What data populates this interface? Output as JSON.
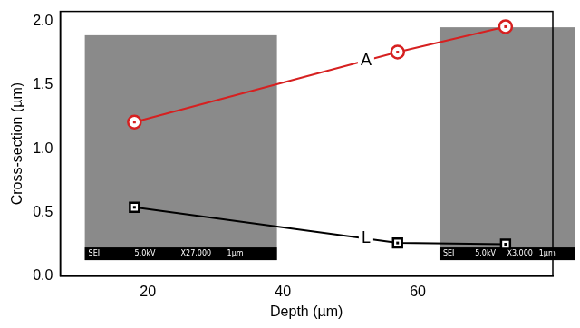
{
  "chart_data": {
    "type": "line",
    "x_label": "Depth (µm)",
    "y_label": "Cross-section (µm)",
    "x": [
      18,
      57,
      73
    ],
    "xlim": [
      7,
      80
    ],
    "xticks": [
      20,
      40,
      60
    ],
    "ylim": [
      0,
      2.08
    ],
    "yticks": [
      {
        "value": 0,
        "label": "0.0"
      },
      {
        "value": 0.5,
        "label": "0.5"
      },
      {
        "value": 1,
        "label": "1.0"
      },
      {
        "value": 1.5,
        "label": "1.5"
      },
      {
        "value": 2,
        "label": "2.0"
      }
    ],
    "grid": false,
    "series": [
      {
        "name": "A",
        "color": "#d62020",
        "marker": "circle",
        "values": [
          1.21,
          1.76,
          1.96
        ]
      },
      {
        "name": "L",
        "color": "#000000",
        "marker": "square",
        "values": [
          0.54,
          0.26,
          0.25
        ]
      }
    ],
    "insets": [
      {
        "labels": [
          "SEI",
          "5.0kV",
          "X27,000",
          "1µm"
        ]
      },
      {
        "labels": [
          "SEI",
          "5.0kV",
          "X3,000",
          "1µm"
        ]
      }
    ]
  }
}
